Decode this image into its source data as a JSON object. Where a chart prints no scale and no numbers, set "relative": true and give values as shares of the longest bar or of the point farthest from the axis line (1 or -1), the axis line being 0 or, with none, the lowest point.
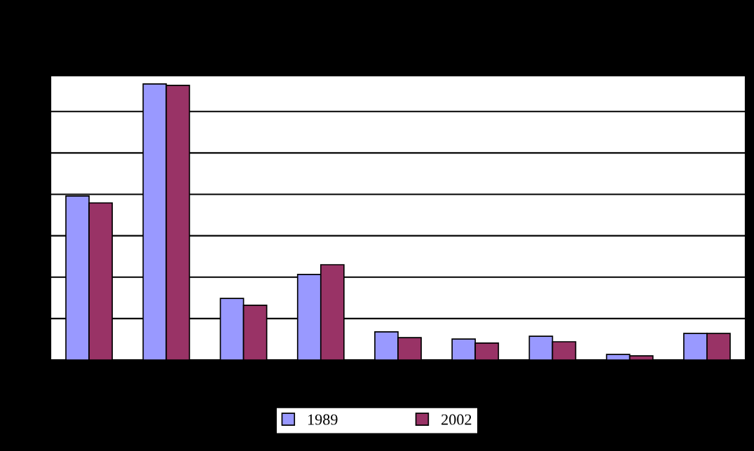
{
  "chart_data": {
    "type": "bar",
    "relative": true,
    "categories": [
      null,
      null,
      null,
      null,
      null,
      null,
      null,
      null,
      null
    ],
    "series": [
      {
        "name": "1989",
        "color": "#9999ff",
        "values": [
          0.594,
          1,
          0.223,
          0.31,
          0.102,
          0.076,
          0.086,
          0.02,
          0.096
        ]
      },
      {
        "name": "2002",
        "color": "#993366",
        "values": [
          0.569,
          0.995,
          0.198,
          0.345,
          0.081,
          0.061,
          0.066,
          0.015,
          0.096
        ]
      }
    ],
    "grid": "y",
    "legend": "bottom"
  }
}
